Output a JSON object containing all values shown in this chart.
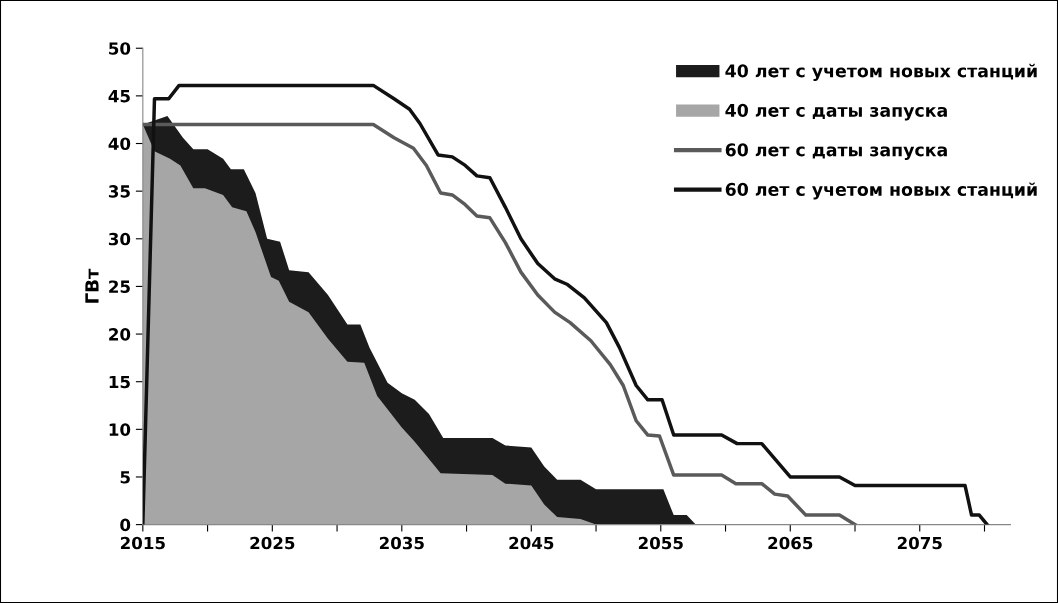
{
  "chart_data": {
    "type": "line",
    "ylabel": "ГВт",
    "xlim": [
      2015,
      2082
    ],
    "ylim": [
      0,
      50
    ],
    "xticks": [
      2015,
      {
        "value": 2020,
        "label": null
      },
      2025,
      {
        "value": 2030,
        "label": null
      },
      2035,
      {
        "value": 2040,
        "label": null
      },
      2045,
      {
        "value": 2050,
        "label": null
      },
      2055,
      {
        "value": 2060,
        "label": null
      },
      2065,
      {
        "value": 2070,
        "label": null
      },
      2075,
      {
        "value": 2080,
        "label": null
      }
    ],
    "yticks": [
      0,
      5,
      10,
      15,
      20,
      25,
      30,
      35,
      40,
      45,
      50
    ],
    "grid": false,
    "legend": "top right",
    "marker": "none",
    "line_style": "solid",
    "series": [
      {
        "name": "40 лет с учетом новых станций",
        "type": "area",
        "color": "#1c1c1c",
        "x": [
          2015,
          2016.9,
          2018.1,
          2018.9,
          2020,
          2021.2,
          2021.8,
          2022.8,
          2023.7,
          2024.6,
          2025.6,
          2026.3,
          2027.8,
          2029.3,
          2030.8,
          2031.8,
          2032.5,
          2033.9,
          2035,
          2036,
          2037.1,
          2038.2,
          2042,
          2043,
          2045,
          2046,
          2047,
          2048.8,
          2050,
          2055.2,
          2056,
          2057,
          2057.7
        ],
        "values": [
          42,
          42.9,
          40.6,
          39.4,
          39.4,
          38.4,
          37.3,
          37.3,
          34.8,
          30,
          29.7,
          26.7,
          26.5,
          24.1,
          21,
          21,
          18.6,
          14.9,
          13.8,
          13.1,
          11.6,
          9.1,
          9.1,
          8.3,
          8.1,
          6.1,
          4.7,
          4.7,
          3.7,
          3.7,
          1,
          1,
          0
        ]
      },
      {
        "name": "40 лет с даты запуска",
        "type": "area",
        "color": "#a6a6a6",
        "x": [
          2015,
          2015.9,
          2017.1,
          2017.9,
          2018.9,
          2019.8,
          2021.2,
          2021.9,
          2023,
          2023.7,
          2024.9,
          2025.5,
          2026.3,
          2027.8,
          2029.3,
          2030.8,
          2032.1,
          2033.1,
          2035,
          2036,
          2038,
          2042,
          2043,
          2045,
          2046,
          2047,
          2048.8,
          2050
        ],
        "values": [
          42,
          39.2,
          38.4,
          37.7,
          35.3,
          35.3,
          34.6,
          33.3,
          32.9,
          30.7,
          26,
          25.6,
          23.4,
          22.3,
          19.5,
          17.1,
          17,
          13.5,
          10.2,
          8.7,
          5.4,
          5.2,
          4.3,
          4.1,
          2.1,
          0.8,
          0.6,
          0
        ]
      },
      {
        "name": "60 лет с даты запуска",
        "color": "#5a5a5a",
        "x": [
          2015,
          2032.8,
          2034.4,
          2035.9,
          2036.9,
          2038,
          2038.9,
          2039.8,
          2040.8,
          2041.8,
          2043,
          2044.2,
          2045.5,
          2046.8,
          2048,
          2049.6,
          2051.1,
          2052.1,
          2053.1,
          2054,
          2054.9,
          2056,
          2059.7,
          2060.8,
          2062.8,
          2063.8,
          2064.8,
          2066.2,
          2068.8,
          2070
        ],
        "values": [
          42,
          42,
          40.6,
          39.5,
          37.7,
          34.8,
          34.6,
          33.7,
          32.4,
          32.2,
          29.6,
          26.5,
          24.1,
          22.3,
          21.2,
          19.3,
          16.8,
          14.6,
          10.9,
          9.4,
          9.3,
          5.2,
          5.2,
          4.3,
          4.3,
          3.2,
          3,
          1,
          1,
          0
        ]
      },
      {
        "name": "60 лет с учетом новых станций",
        "color": "#111111",
        "x": [
          2015,
          2015.9,
          2017,
          2017.8,
          2032.8,
          2034.4,
          2035.6,
          2036.4,
          2037.8,
          2038.9,
          2039.9,
          2040.8,
          2041.8,
          2043,
          2044.2,
          2045.5,
          2046.8,
          2047.8,
          2049.1,
          2050.8,
          2051.8,
          2053.1,
          2054,
          2055.1,
          2056,
          2059.7,
          2060.9,
          2062.8,
          2065,
          2068.8,
          2070,
          2078.5,
          2079,
          2079.6,
          2080.2
        ],
        "values": [
          0,
          44.7,
          44.7,
          46.1,
          46.1,
          44.7,
          43.6,
          42.1,
          38.8,
          38.6,
          37.7,
          36.6,
          36.4,
          33.3,
          30,
          27.4,
          25.8,
          25.2,
          23.8,
          21.2,
          18.6,
          14.6,
          13.1,
          13.1,
          9.4,
          9.4,
          8.5,
          8.5,
          5,
          5,
          4.1,
          4.1,
          1,
          1,
          0
        ]
      }
    ]
  }
}
